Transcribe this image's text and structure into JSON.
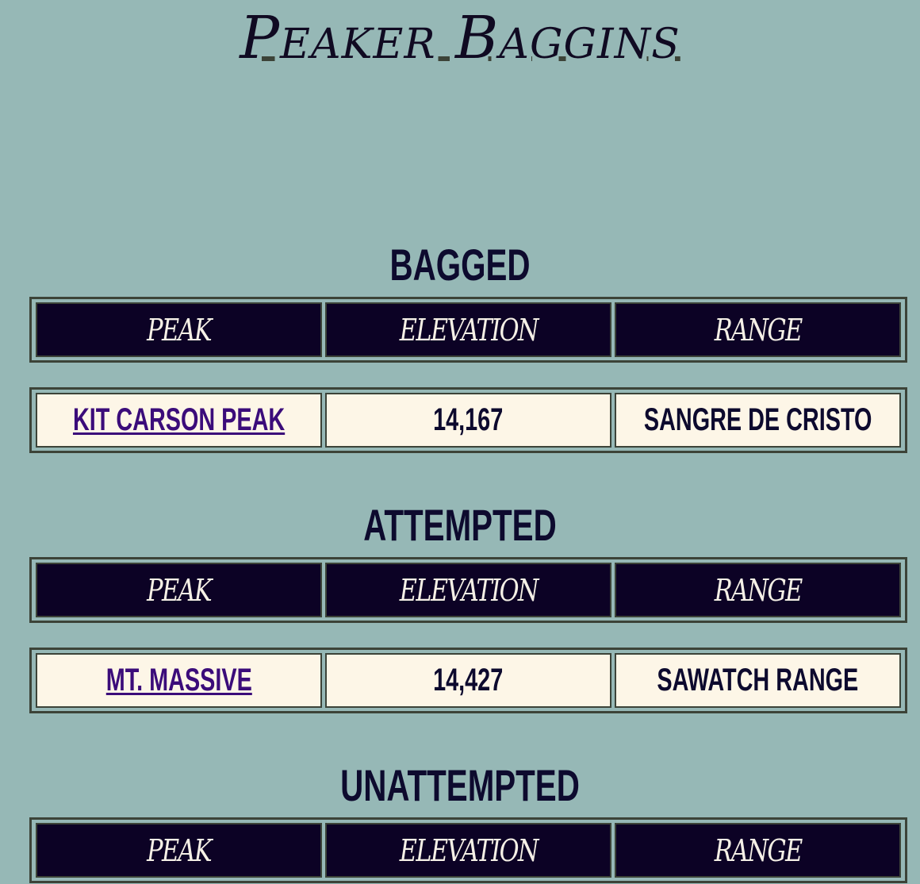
{
  "site": {
    "title": "Peaker Baggins"
  },
  "columns": {
    "peak": "Peak",
    "elevation": "Elevation",
    "range": "Range"
  },
  "sections": [
    {
      "heading": "Bagged",
      "rows": [
        {
          "peak": "Kit Carson Peak",
          "elevation": "14,167",
          "range": "Sangre de Cristo"
        }
      ]
    },
    {
      "heading": "Attempted",
      "rows": [
        {
          "peak": "Mt. Massive",
          "elevation": "14,427",
          "range": "Sawatch Range"
        }
      ]
    },
    {
      "heading": "Unattempted",
      "rows": []
    }
  ],
  "colors": {
    "background": "#96b8b6",
    "header_bg": "#0c0225",
    "row_bg": "#fdf6e7",
    "border": "#3c4338",
    "link": "#3b0c7a",
    "text": "#0d0a2e"
  }
}
